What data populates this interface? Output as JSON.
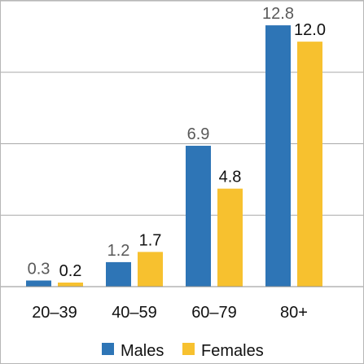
{
  "chart_data": {
    "type": "bar",
    "categories": [
      "20–39",
      "40–59",
      "60–79",
      "80+"
    ],
    "series": [
      {
        "name": "Males",
        "values": [
          0.3,
          1.2,
          6.9,
          12.8
        ],
        "value_labels": [
          "0.3",
          "1.2",
          "6.9",
          "12.8"
        ],
        "color": "#2e75b6"
      },
      {
        "name": "Females",
        "values": [
          0.2,
          1.7,
          4.8,
          12.0
        ],
        "value_labels": [
          "0.2",
          "1.7",
          "4.8",
          "12.0"
        ],
        "color": "#f7c12f"
      }
    ],
    "title": "",
    "xlabel": "",
    "ylabel": "",
    "ylim": [
      0,
      14
    ],
    "grid": true,
    "legend": "bottom"
  }
}
